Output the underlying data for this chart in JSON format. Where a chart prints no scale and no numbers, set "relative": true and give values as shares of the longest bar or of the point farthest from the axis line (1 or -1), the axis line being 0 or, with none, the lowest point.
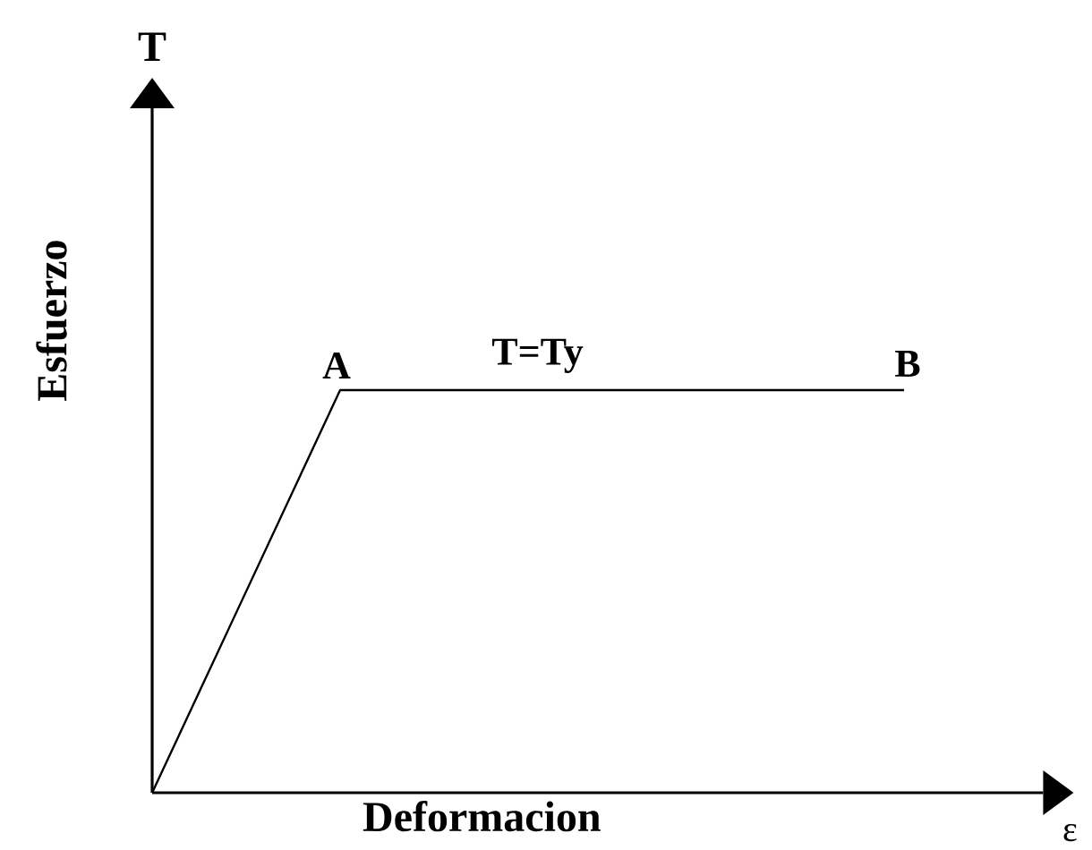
{
  "chart_data": {
    "type": "line",
    "xlabel": "Deformacion",
    "ylabel": "Esfuerzo",
    "annotations": [
      "T",
      "A",
      "T=Ty",
      "B",
      "ε"
    ],
    "categories": [
      null,
      null,
      null,
      null,
      null
    ],
    "values": [
      0,
      1,
      1,
      1,
      1
    ],
    "color": "#000000",
    "relative": true
  }
}
